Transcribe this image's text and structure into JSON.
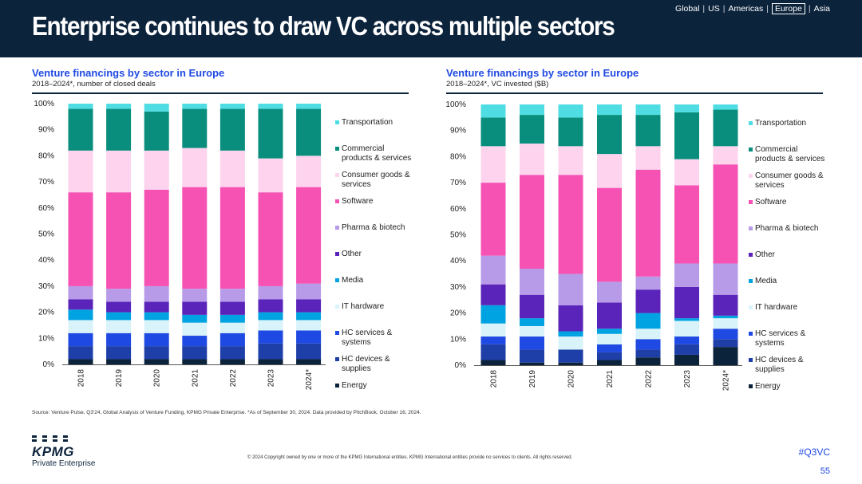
{
  "header": {
    "title": "Enterprise continues to draw VC across multiple sectors",
    "regions": [
      "Global",
      "US",
      "Americas",
      "Europe",
      "Asia"
    ],
    "active_region": "Europe"
  },
  "chart_data": [
    {
      "type": "stacked-bar",
      "title": "Venture financings by sector in Europe",
      "subtitle": "2018–2024*, number of closed deals",
      "categories": [
        "2018",
        "2019",
        "2020",
        "2021",
        "2022",
        "2023",
        "2024*"
      ],
      "yticks": [
        "0%",
        "10%",
        "20%",
        "30%",
        "40%",
        "50%",
        "60%",
        "70%",
        "80%",
        "90%",
        "100%"
      ],
      "ylim": [
        0,
        100
      ],
      "series": [
        {
          "name": "Energy",
          "color": "#0c233c",
          "values": [
            2,
            2,
            2,
            2,
            2,
            2,
            2
          ]
        },
        {
          "name": "HC devices & supplies",
          "color": "#1e3ea8",
          "values": [
            5,
            5,
            5,
            5,
            5,
            6,
            6
          ]
        },
        {
          "name": "HC services & systems",
          "color": "#1e49e2",
          "values": [
            5,
            5,
            5,
            4,
            5,
            5,
            5
          ]
        },
        {
          "name": "IT hardware",
          "color": "#d9f3fa",
          "values": [
            5,
            5,
            5,
            5,
            4,
            4,
            4
          ]
        },
        {
          "name": "Media",
          "color": "#00a3e1",
          "values": [
            4,
            3,
            3,
            3,
            3,
            3,
            3
          ]
        },
        {
          "name": "Other",
          "color": "#5a23b9",
          "values": [
            4,
            4,
            4,
            5,
            5,
            5,
            5
          ]
        },
        {
          "name": "Pharma & biotech",
          "color": "#b79be9",
          "values": [
            5,
            5,
            6,
            5,
            5,
            5,
            6
          ]
        },
        {
          "name": "Software",
          "color": "#f552b4",
          "values": [
            36,
            37,
            37,
            39,
            39,
            36,
            37
          ]
        },
        {
          "name": "Consumer goods & services",
          "color": "#fdd3ee",
          "values": [
            16,
            16,
            15,
            15,
            14,
            13,
            12
          ]
        },
        {
          "name": "Commercial products & services",
          "color": "#098e7e",
          "values": [
            16,
            16,
            15,
            15,
            16,
            19,
            18
          ]
        },
        {
          "name": "Transportation",
          "color": "#4fdde3",
          "values": [
            2,
            2,
            3,
            2,
            2,
            2,
            2
          ]
        }
      ]
    },
    {
      "type": "stacked-bar",
      "title": "Venture financings by sector in Europe",
      "subtitle": "2018–2024*, VC invested ($B)",
      "categories": [
        "2018",
        "2019",
        "2020",
        "2021",
        "2022",
        "2023",
        "2024*"
      ],
      "yticks": [
        "0%",
        "10%",
        "20%",
        "30%",
        "40%",
        "50%",
        "60%",
        "70%",
        "80%",
        "90%",
        "100%"
      ],
      "ylim": [
        0,
        100
      ],
      "series": [
        {
          "name": "Energy",
          "color": "#0c233c",
          "values": [
            2,
            1,
            1,
            2,
            3,
            4,
            7
          ]
        },
        {
          "name": "HC devices & supplies",
          "color": "#1e3ea8",
          "values": [
            6,
            5,
            5,
            3,
            3,
            4,
            3
          ]
        },
        {
          "name": "HC services & systems",
          "color": "#1e49e2",
          "values": [
            3,
            5,
            0,
            3,
            4,
            3,
            4
          ]
        },
        {
          "name": "IT hardware",
          "color": "#d9f3fa",
          "values": [
            5,
            4,
            5,
            4,
            4,
            6,
            4
          ]
        },
        {
          "name": "Media",
          "color": "#00a3e1",
          "values": [
            7,
            3,
            2,
            2,
            6,
            1,
            1
          ]
        },
        {
          "name": "Other",
          "color": "#5a23b9",
          "values": [
            8,
            9,
            10,
            10,
            9,
            12,
            8
          ]
        },
        {
          "name": "Pharma & biotech",
          "color": "#b79be9",
          "values": [
            11,
            10,
            12,
            8,
            5,
            9,
            12
          ]
        },
        {
          "name": "Software",
          "color": "#f552b4",
          "values": [
            28,
            36,
            38,
            36,
            41,
            30,
            38
          ]
        },
        {
          "name": "Consumer goods & services",
          "color": "#fdd3ee",
          "values": [
            14,
            12,
            11,
            13,
            9,
            10,
            7
          ]
        },
        {
          "name": "Commercial products & services",
          "color": "#098e7e",
          "values": [
            11,
            11,
            11,
            15,
            12,
            18,
            14
          ]
        },
        {
          "name": "Transportation",
          "color": "#4fdde3",
          "values": [
            5,
            4,
            5,
            4,
            4,
            3,
            2
          ]
        }
      ]
    }
  ],
  "footer": {
    "source": "Source: Venture Pulse, Q3'24, Global Analysis of Venture Funding, KPMG Private Enterprise. *As of September 30, 2024. Data provided by PitchBook, October 16, 2024.",
    "logo_text": "KPMG",
    "logo_subtitle": "Private Enterprise",
    "copyright": "© 2024 Copyright owned by one or more of the KPMG International entities. KPMG International entities provide no services to clients. All rights reserved.",
    "hashtag": "#Q3VC",
    "page_number": "55"
  }
}
